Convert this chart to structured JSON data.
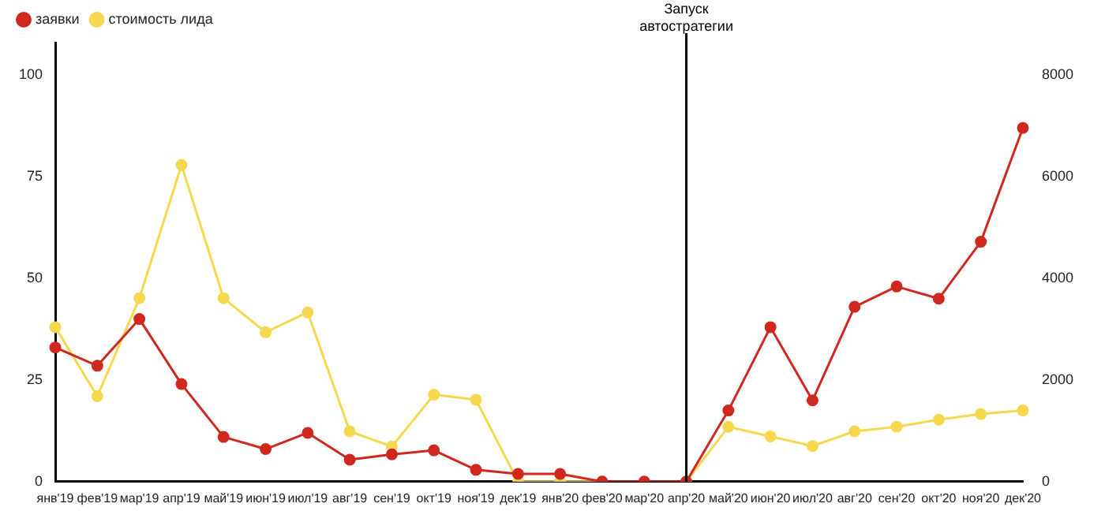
{
  "chart_data": {
    "type": "line",
    "categories": [
      "янв'19",
      "фев'19",
      "мар'19",
      "апр'19",
      "май'19",
      "июн'19",
      "июл'19",
      "авг'19",
      "сен'19",
      "окт'19",
      "ноя'19",
      "дек'19",
      "янв'20",
      "фев'20",
      "мар'20",
      "апр'20",
      "май'20",
      "июн'20",
      "июл'20",
      "авг'20",
      "сен'20",
      "окт'20",
      "ноя'20",
      "дек'20"
    ],
    "series": [
      {
        "name": "заявки",
        "color": "#d0281e",
        "values": [
          33,
          28.5,
          40,
          24,
          11,
          8,
          12,
          5.4,
          6.7,
          7.7,
          2.9,
          1.9,
          1.9,
          0,
          0,
          0,
          17.5,
          38,
          20,
          43,
          48,
          45,
          59,
          87
        ]
      },
      {
        "name": "стоимость лида",
        "color": "#f5d84e",
        "axis": "y2",
        "values": [
          3040,
          1680,
          3610,
          6230,
          3610,
          2940,
          3330,
          990,
          690,
          1710,
          1610,
          0,
          0,
          0,
          null,
          0,
          1080,
          890,
          700,
          990,
          1080,
          1220,
          1330,
          1400
        ]
      }
    ],
    "ylim": [
      0,
      108
    ],
    "yticks": [
      0,
      25,
      50,
      75,
      100
    ],
    "y2lim": [
      0,
      8640
    ],
    "y2ticks": [
      0,
      2000,
      4000,
      6000,
      8000
    ],
    "ref_lines": [
      {
        "axis": "x",
        "value": "апр'20",
        "label": "Запуск\nавтостратегии",
        "color": "#000000"
      }
    ],
    "grid": false,
    "legend": "top left",
    "marker": "circle",
    "line_style": "solid"
  }
}
